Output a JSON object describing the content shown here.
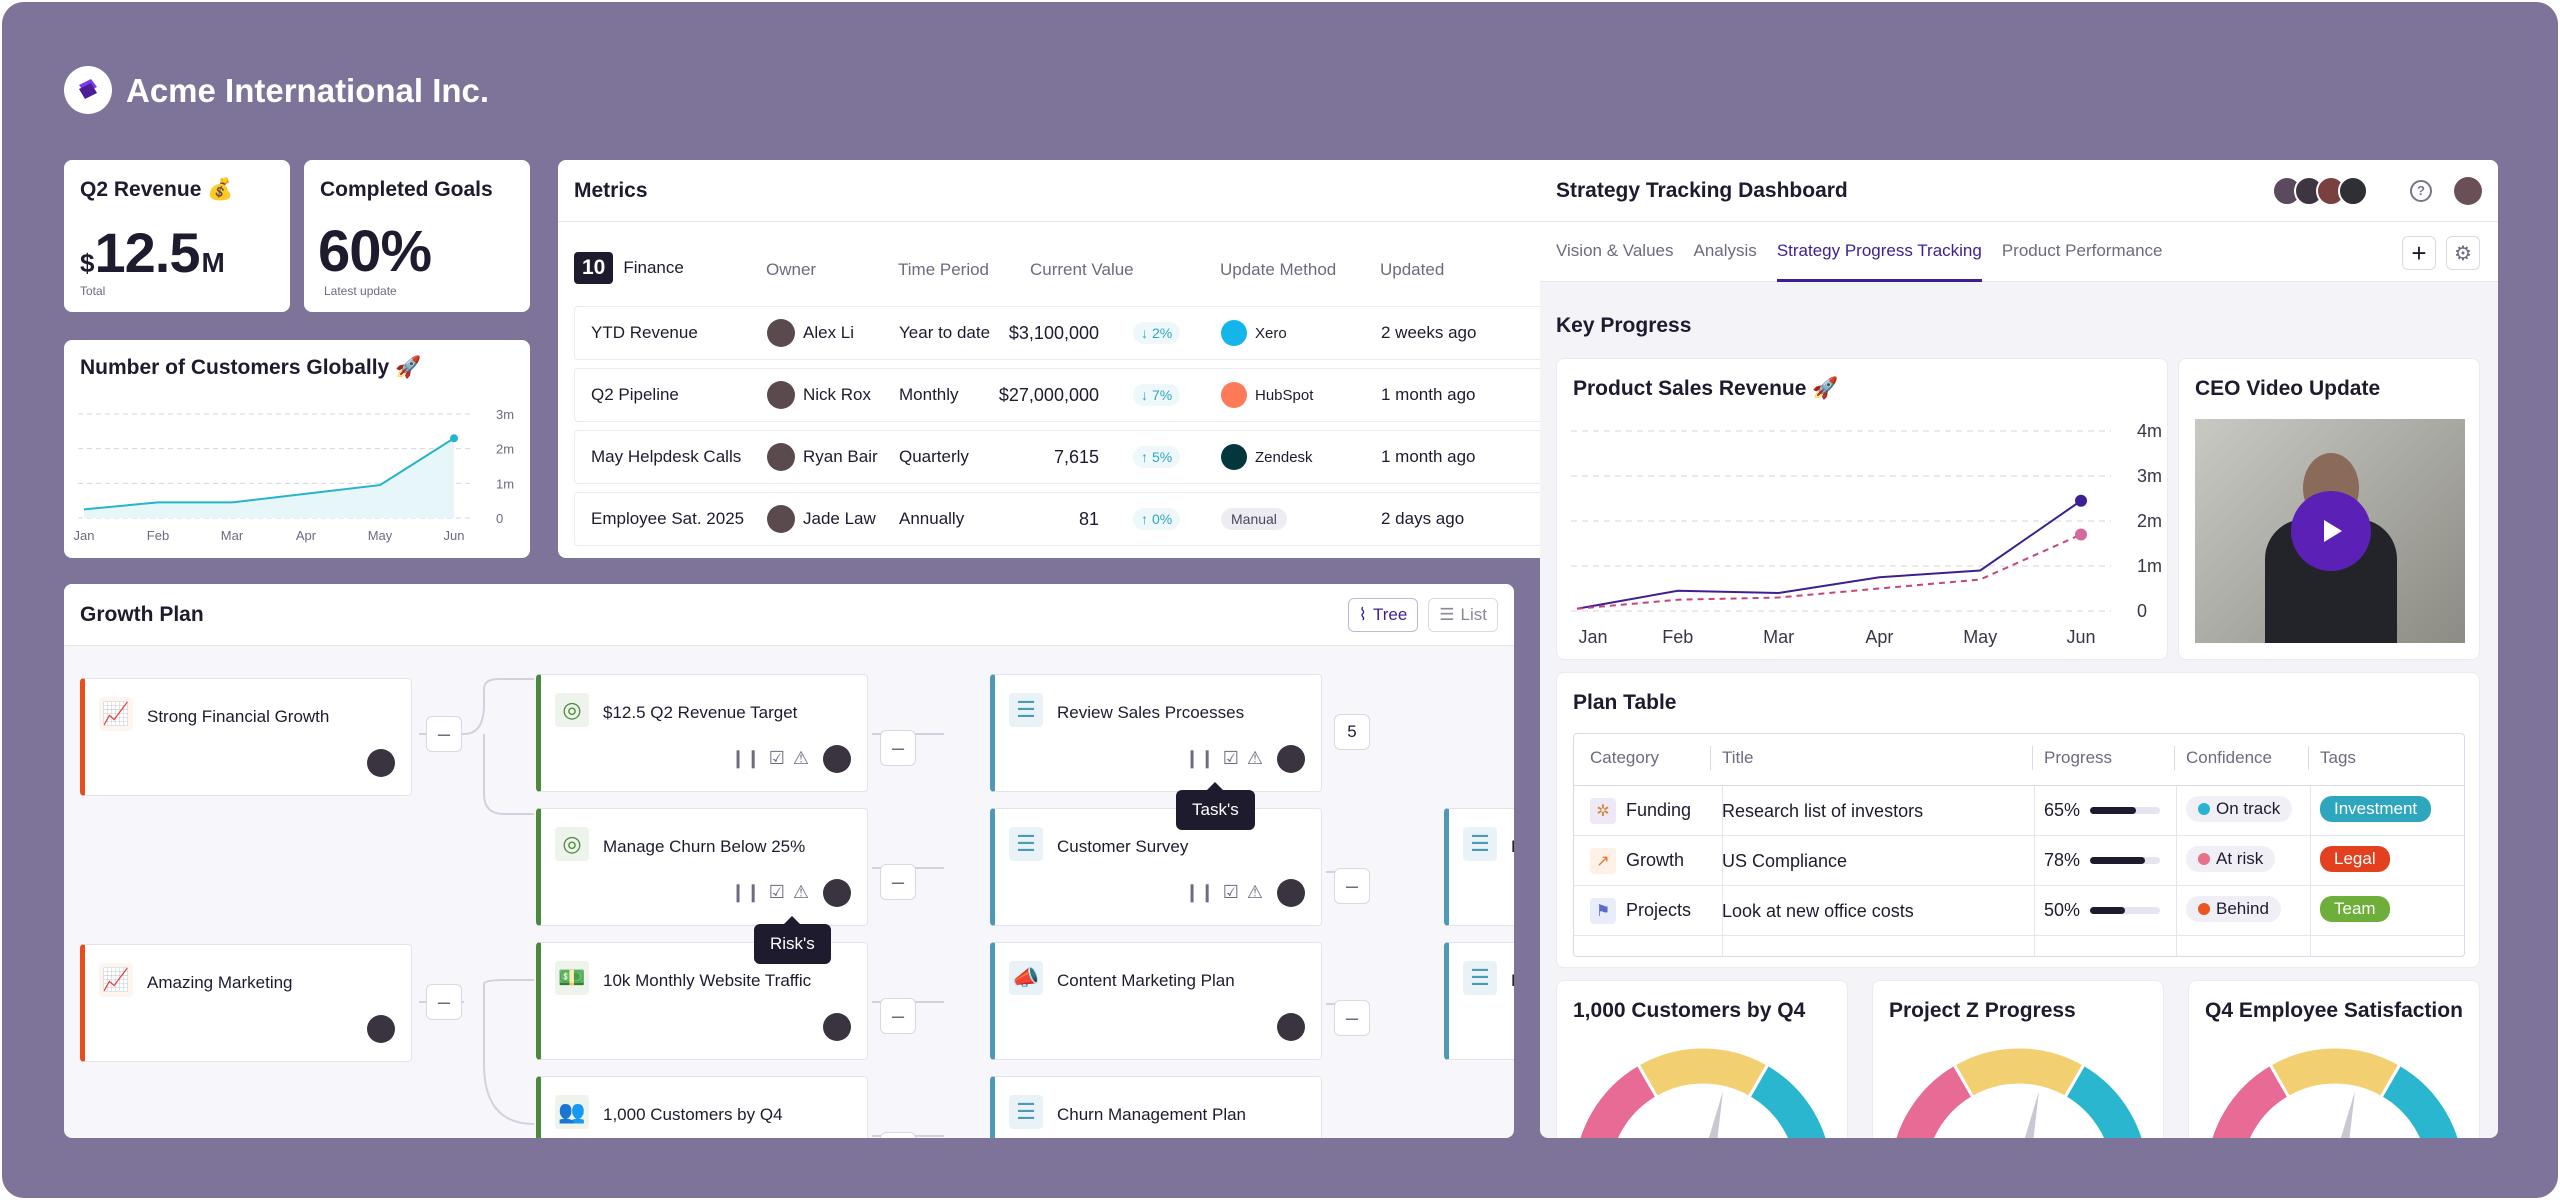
{
  "app": {
    "title": "Acme International Inc."
  },
  "revenue": {
    "title": "Q2 Revenue 💰",
    "currency": "$",
    "amount": "12.5",
    "unit": "M",
    "caption": "Total"
  },
  "goals": {
    "title": "Completed Goals",
    "value": "60%",
    "caption": "Latest update"
  },
  "customers": {
    "title": "Number of Customers Globally 🚀",
    "chart_data": {
      "type": "line",
      "categories": [
        "Jan",
        "Feb",
        "Mar",
        "Apr",
        "May",
        "Jun"
      ],
      "values": [
        0.25,
        0.45,
        0.45,
        0.7,
        0.95,
        2.3
      ],
      "yticks": [
        "3m",
        "2m",
        "1m",
        "0"
      ],
      "ylim": [
        0,
        3
      ]
    }
  },
  "metrics": {
    "title": "Metrics",
    "count": "10",
    "group": "Finance",
    "columns": [
      "Owner",
      "Time Period",
      "Current Value",
      "Update Method",
      "Updated"
    ],
    "rows": [
      {
        "name": "YTD Revenue",
        "owner": "Alex Li",
        "period": "Year to date",
        "value": "$3,100,000",
        "delta": "2%",
        "dir": "down",
        "method": "Xero",
        "updated": "2 weeks ago"
      },
      {
        "name": "Q2 Pipeline",
        "owner": "Nick Rox",
        "period": "Monthly",
        "value": "$27,000,000",
        "delta": "7%",
        "dir": "down",
        "method": "HubSpot",
        "updated": "1 month ago"
      },
      {
        "name": "May Helpdesk Calls",
        "owner": "Ryan Bair",
        "period": "Quarterly",
        "value": "7,615",
        "delta": "5%",
        "dir": "up",
        "method": "Zendesk",
        "updated": "1 month ago"
      },
      {
        "name": "Employee Sat. 2025",
        "owner": "Jade Law",
        "period": "Annually",
        "value": "81",
        "delta": "0%",
        "dir": "up",
        "method": "Manual",
        "updated": "2 days ago"
      }
    ]
  },
  "growth": {
    "title": "Growth Plan",
    "tree_label": "Tree",
    "list_label": "List",
    "level1": [
      "Strong Financial Growth",
      "Amazing Marketing"
    ],
    "level2": [
      "$12.5 Q2 Revenue Target",
      "Manage Churn Below 25%",
      "10k Monthly Website Traffic",
      "1,000 Customers by Q4"
    ],
    "level3": [
      "Review Sales Prcoesses",
      "Customer Survey",
      "Content Marketing Plan",
      "Churn Management Plan"
    ],
    "level4": [
      "Pl",
      "Pl"
    ],
    "count_badge": "5",
    "tooltip_tasks": "Task's",
    "tooltip_risks": "Risk's"
  },
  "strategy": {
    "title": "Strategy Tracking Dashboard",
    "tabs": [
      "Vision & Values",
      "Analysis",
      "Strategy Progress Tracking",
      "Product Performance"
    ],
    "active_tab": 2,
    "section": "Key Progress",
    "sales": {
      "title": "Product Sales Revenue 🚀",
      "chart_data": {
        "type": "line",
        "categories": [
          "Jan",
          "Feb",
          "Mar",
          "Apr",
          "May",
          "Jun"
        ],
        "yticks": [
          "4m",
          "3m",
          "2m",
          "1m",
          "0"
        ],
        "ylim": [
          0,
          4
        ],
        "series": [
          {
            "values": [
              0.05,
              0.45,
              0.4,
              0.75,
              0.9,
              2.45
            ],
            "color": "#3d1f91"
          },
          {
            "values": [
              0.05,
              0.25,
              0.3,
              0.5,
              0.7,
              1.7
            ],
            "color": "#c2457f"
          }
        ]
      }
    },
    "video": {
      "title": "CEO Video Update"
    },
    "plan": {
      "title": "Plan Table",
      "columns": [
        "Category",
        "Title",
        "Progress",
        "Confidence",
        "Tags"
      ],
      "rows": [
        {
          "cat": "Funding",
          "title": "Research list of investors",
          "progress": "65%",
          "pct": 0.65,
          "conf": "On track",
          "conf_color": "#2bb3d3",
          "tag": "Investment",
          "tag_color": "#2ea7be"
        },
        {
          "cat": "Growth",
          "title": "US Compliance",
          "progress": "78%",
          "pct": 0.78,
          "conf": "At risk",
          "conf_color": "#e8718a",
          "tag": "Legal",
          "tag_color": "#e2401e"
        },
        {
          "cat": "Projects",
          "title": "Look at new office costs",
          "progress": "50%",
          "pct": 0.5,
          "conf": "Behind",
          "conf_color": "#e9571f",
          "tag": "Team",
          "tag_color": "#6eae3a"
        }
      ]
    },
    "gauges": [
      "1,000 Customers by Q4",
      "Project Z Progress",
      "Q4 Employee Satisfaction"
    ]
  }
}
